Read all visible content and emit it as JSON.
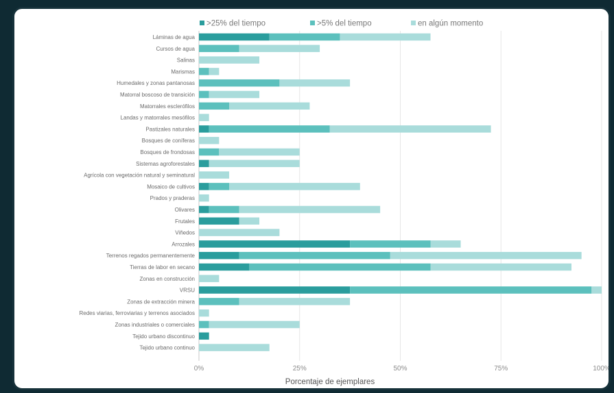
{
  "chart_data": {
    "type": "bar",
    "orientation": "horizontal",
    "stacked": true,
    "categories": [
      "Láminas de agua",
      "Cursos de agua",
      "Salinas",
      "Marismas",
      "Humedales y zonas pantanosas",
      "Matorral boscoso de transición",
      "Matorrales esclerófilos",
      "Landas y matorrales mesófilos",
      "Pastizales naturales",
      "Bosques de coníferas",
      "Bosques de frondosas",
      "Sistemas agroforestales",
      "Agrícola con vegetación natural y seminatural",
      "Mosaico de cultivos",
      "Prados y praderas",
      "Olivares",
      "Frutales",
      "Viñedos",
      "Arrozales",
      "Terrenos regados permanentemente",
      "Tierras de labor en secano",
      "Zonas en construcción",
      "VRSU",
      "Zonas de extracción minera",
      "Redes viarias, ferroviarias y terrenos asociados",
      "Zonas industriales o comerciales",
      "Tejido urbano discontinuo",
      "Tejido urbano continuo"
    ],
    "series": [
      {
        "name": ">25% del tiempo",
        "color": "#2a9d9d",
        "values": [
          17.5,
          0,
          0,
          0,
          0,
          0,
          0,
          0,
          2.5,
          0,
          0,
          2.5,
          0,
          2.5,
          0,
          2.5,
          10,
          0,
          37.5,
          10,
          12.5,
          0,
          37.5,
          0,
          0,
          0,
          2.5,
          0
        ]
      },
      {
        "name": ">5% del tiempo",
        "color": "#5cc0bd",
        "values": [
          17.5,
          10,
          0,
          2.5,
          20,
          2.5,
          7.5,
          0,
          30,
          0,
          5,
          0,
          0,
          5,
          0,
          7.5,
          0,
          0,
          20,
          37.5,
          45,
          0,
          60,
          10,
          0,
          2.5,
          0,
          0
        ]
      },
      {
        "name": "en algún momento",
        "color": "#a9dcdb",
        "values": [
          22.5,
          20,
          15,
          2.5,
          17.5,
          12.5,
          20,
          2.5,
          40,
          5,
          20,
          22.5,
          7.5,
          32.5,
          2.5,
          35,
          5,
          20,
          7.5,
          47.5,
          35,
          5,
          2.5,
          27.5,
          2.5,
          22.5,
          0,
          17.5
        ]
      }
    ],
    "x_ticks": [
      "0%",
      "25%",
      "50%",
      "75%",
      "100%"
    ],
    "xlim": [
      0,
      100
    ],
    "xlabel": "Porcentaje de ejemplares",
    "ylabel": "",
    "title": "",
    "legend_position": "top",
    "grid": true
  }
}
